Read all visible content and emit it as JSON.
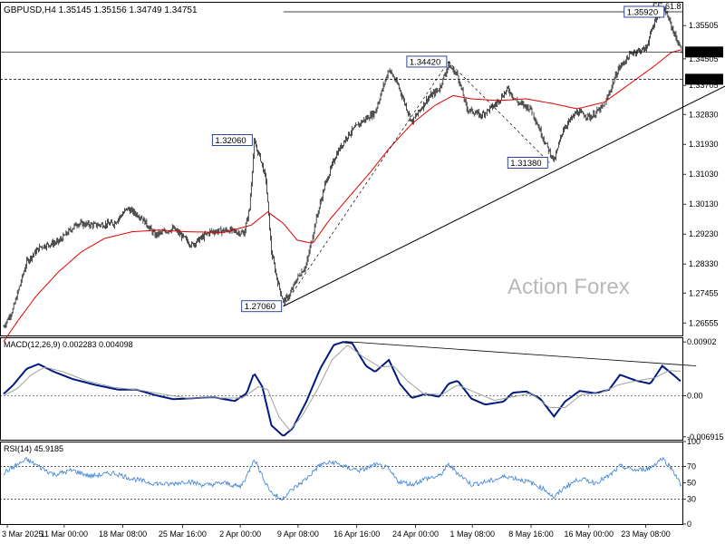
{
  "colors": {
    "background": "#ffffff",
    "bar": "#000000",
    "ema": "#e00000",
    "macd": "#001a80",
    "signal": "#a0a0a0",
    "rsi": "#3a7fd5",
    "grid": "#000000",
    "label_text": "#000000"
  },
  "header": {
    "symbol": "GBPUSD,H4",
    "ohlc": "1.35145 1.35156 1.34749 1.34751"
  },
  "watermark": "Action Forex",
  "chart_data": [
    {
      "type": "candlestick",
      "name": "price",
      "ylim": [
        1.2618,
        1.3622
      ],
      "y_ticks": [
        "1.35505",
        "1.34505",
        "1.33705",
        "1.32830",
        "1.31930",
        "1.31030",
        "1.30130",
        "1.29230",
        "1.28330",
        "1.27455",
        "1.26555"
      ],
      "y_tick_values": [
        1.35505,
        1.34505,
        1.33705,
        1.3283,
        1.3193,
        1.3103,
        1.3013,
        1.2923,
        1.2833,
        1.27455,
        1.26555
      ],
      "x_ticks": [
        "3 Mar 2025",
        "11 Mar 00:00",
        "18 Mar 08:00",
        "25 Mar 16:00",
        "2 Apr 00:00",
        "9 Apr 08:00",
        "16 Apr 16:00",
        "24 Apr 00:00",
        "1 May 08:00",
        "8 May 16:00",
        "16 May 00:00",
        "23 May 08:00"
      ],
      "x_tick_bar_index": [
        4,
        66,
        130,
        195,
        258,
        321,
        385,
        449,
        511,
        575,
        638,
        700
      ],
      "bar_count": 740,
      "price_path": [
        [
          0,
          1.2645
        ],
        [
          10,
          1.2695
        ],
        [
          25,
          1.284
        ],
        [
          40,
          1.2885
        ],
        [
          60,
          1.29
        ],
        [
          80,
          1.2955
        ],
        [
          100,
          1.295
        ],
        [
          120,
          1.2955
        ],
        [
          135,
          1.3
        ],
        [
          150,
          1.2975
        ],
        [
          165,
          1.292
        ],
        [
          185,
          1.294
        ],
        [
          205,
          1.289
        ],
        [
          225,
          1.293
        ],
        [
          245,
          1.2935
        ],
        [
          262,
          1.2925
        ],
        [
          268,
          1.3
        ],
        [
          273,
          1.3198
        ],
        [
          280,
          1.315
        ],
        [
          286,
          1.3085
        ],
        [
          292,
          1.287
        ],
        [
          298,
          1.279
        ],
        [
          305,
          1.272
        ],
        [
          312,
          1.274
        ],
        [
          320,
          1.279
        ],
        [
          330,
          1.283
        ],
        [
          340,
          1.296
        ],
        [
          350,
          1.307
        ],
        [
          362,
          1.316
        ],
        [
          375,
          1.322
        ],
        [
          390,
          1.326
        ],
        [
          405,
          1.329
        ],
        [
          420,
          1.342
        ],
        [
          430,
          1.337
        ],
        [
          445,
          1.326
        ],
        [
          462,
          1.333
        ],
        [
          475,
          1.336
        ],
        [
          485,
          1.3432
        ],
        [
          495,
          1.34
        ],
        [
          505,
          1.33
        ],
        [
          520,
          1.328
        ],
        [
          535,
          1.331
        ],
        [
          550,
          1.336
        ],
        [
          560,
          1.332
        ],
        [
          575,
          1.33
        ],
        [
          590,
          1.32
        ],
        [
          600,
          1.3143
        ],
        [
          610,
          1.324
        ],
        [
          625,
          1.329
        ],
        [
          640,
          1.3275
        ],
        [
          655,
          1.331
        ],
        [
          670,
          1.342
        ],
        [
          685,
          1.347
        ],
        [
          700,
          1.348
        ],
        [
          712,
          1.358
        ],
        [
          722,
          1.3592
        ],
        [
          732,
          1.352
        ],
        [
          739,
          1.3475
        ]
      ],
      "ema_path": [
        [
          0,
          1.26
        ],
        [
          15,
          1.266
        ],
        [
          35,
          1.2735
        ],
        [
          60,
          1.281
        ],
        [
          85,
          1.287
        ],
        [
          110,
          1.291
        ],
        [
          140,
          1.293
        ],
        [
          170,
          1.2935
        ],
        [
          200,
          1.293
        ],
        [
          240,
          1.2928
        ],
        [
          270,
          1.295
        ],
        [
          288,
          1.299
        ],
        [
          305,
          1.2955
        ],
        [
          320,
          1.2905
        ],
        [
          337,
          1.2895
        ],
        [
          355,
          1.2965
        ],
        [
          375,
          1.303
        ],
        [
          400,
          1.311
        ],
        [
          420,
          1.318
        ],
        [
          445,
          1.3255
        ],
        [
          470,
          1.331
        ],
        [
          490,
          1.334
        ],
        [
          510,
          1.333
        ],
        [
          540,
          1.3325
        ],
        [
          570,
          1.333
        ],
        [
          600,
          1.3315
        ],
        [
          625,
          1.33
        ],
        [
          655,
          1.332
        ],
        [
          685,
          1.338
        ],
        [
          710,
          1.343
        ],
        [
          728,
          1.347
        ],
        [
          739,
          1.3478
        ]
      ],
      "trendline": {
        "from": [
          305,
          1.2706
        ],
        "to": [
          795,
          1.338
        ]
      },
      "hline_solid": 1.3471,
      "hline_dashed": 1.3389,
      "fe_line": {
        "value": 1.3592,
        "label": "FE 61.8"
      },
      "dashed_swings": [
        [
          [
            305,
            1.2706
          ],
          [
            485,
            1.3442
          ]
        ],
        [
          [
            485,
            1.3442
          ],
          [
            595,
            1.3138
          ]
        ]
      ],
      "annotations": [
        {
          "text": "1.32060",
          "bar": 273,
          "price": 1.3206,
          "side": "left"
        },
        {
          "text": "1.27060",
          "bar": 305,
          "price": 1.2706,
          "side": "left"
        },
        {
          "text": "1.34420",
          "bar": 485,
          "price": 1.3442,
          "side": "left"
        },
        {
          "text": "1.31380",
          "bar": 595,
          "price": 1.3138,
          "side": "left"
        },
        {
          "text": "1.35920",
          "bar": 722,
          "price": 1.3592,
          "side": "left"
        }
      ],
      "price_label_current": "1.34751",
      "price_label_level": "1.33890"
    },
    {
      "type": "line",
      "name": "MACD",
      "title": "MACD(12,26,9) 0.002283 0.004098",
      "ylim": [
        -0.0074,
        0.0098
      ],
      "y_ticks": [
        "0.00902",
        "0.00",
        "-0.006915"
      ],
      "y_tick_values": [
        0.00902,
        0.0,
        -0.006915
      ],
      "series": [
        {
          "name": "MACD",
          "path": [
            [
              0,
              0.0003
            ],
            [
              10,
              0.0017
            ],
            [
              25,
              0.0045
            ],
            [
              38,
              0.0053
            ],
            [
              55,
              0.004
            ],
            [
              75,
              0.0028
            ],
            [
              100,
              0.0018
            ],
            [
              125,
              0.001
            ],
            [
              145,
              0.001
            ],
            [
              165,
              0.0001
            ],
            [
              185,
              -0.0006
            ],
            [
              210,
              -0.0004
            ],
            [
              230,
              -0.0003
            ],
            [
              252,
              -0.0009
            ],
            [
              265,
              0.0004
            ],
            [
              273,
              0.0038
            ],
            [
              282,
              0.0015
            ],
            [
              292,
              -0.005
            ],
            [
              305,
              -0.0068
            ],
            [
              315,
              -0.0055
            ],
            [
              330,
              -0.001
            ],
            [
              345,
              0.0045
            ],
            [
              360,
              0.0085
            ],
            [
              370,
              0.009
            ],
            [
              380,
              0.0088
            ],
            [
              395,
              0.005
            ],
            [
              405,
              0.004
            ],
            [
              420,
              0.006
            ],
            [
              432,
              0.002
            ],
            [
              445,
              -0.0004
            ],
            [
              460,
              0.0003
            ],
            [
              475,
              -0.0002
            ],
            [
              485,
              0.002
            ],
            [
              495,
              0.0025
            ],
            [
              510,
              -0.0005
            ],
            [
              525,
              -0.0015
            ],
            [
              545,
              -0.001
            ],
            [
              555,
              0.0005
            ],
            [
              570,
              0.0007
            ],
            [
              585,
              -0.0005
            ],
            [
              600,
              -0.0035
            ],
            [
              612,
              -0.001
            ],
            [
              628,
              0.0008
            ],
            [
              645,
              0.0004
            ],
            [
              660,
              0.001
            ],
            [
              672,
              0.0035
            ],
            [
              690,
              0.0025
            ],
            [
              705,
              0.002
            ],
            [
              718,
              0.005
            ],
            [
              730,
              0.0035
            ],
            [
              739,
              0.0023
            ]
          ]
        },
        {
          "name": "Signal",
          "path": [
            [
              0,
              0.0
            ],
            [
              15,
              0.0012
            ],
            [
              30,
              0.0035
            ],
            [
              45,
              0.0048
            ],
            [
              65,
              0.004
            ],
            [
              90,
              0.0025
            ],
            [
              120,
              0.0014
            ],
            [
              150,
              0.0009
            ],
            [
              175,
              0.0002
            ],
            [
              200,
              -0.0004
            ],
            [
              230,
              -0.0004
            ],
            [
              260,
              -0.0004
            ],
            [
              278,
              0.0015
            ],
            [
              288,
              0.001
            ],
            [
              300,
              -0.0035
            ],
            [
              312,
              -0.0058
            ],
            [
              325,
              -0.0035
            ],
            [
              342,
              0.001
            ],
            [
              358,
              0.006
            ],
            [
              375,
              0.0085
            ],
            [
              392,
              0.0065
            ],
            [
              410,
              0.0048
            ],
            [
              425,
              0.005
            ],
            [
              440,
              0.0025
            ],
            [
              458,
              0.0003
            ],
            [
              478,
              0.0002
            ],
            [
              495,
              0.0018
            ],
            [
              515,
              0.0005
            ],
            [
              535,
              -0.0008
            ],
            [
              555,
              -0.0002
            ],
            [
              575,
              0.0004
            ],
            [
              595,
              -0.002
            ],
            [
              612,
              -0.002
            ],
            [
              630,
              0.0002
            ],
            [
              650,
              0.0004
            ],
            [
              670,
              0.0018
            ],
            [
              690,
              0.0025
            ],
            [
              710,
              0.003
            ],
            [
              725,
              0.0042
            ],
            [
              739,
              0.0041
            ]
          ]
        }
      ],
      "trendline": {
        "from": [
          372,
          0.0091
        ],
        "to": [
          755,
          0.005
        ]
      }
    },
    {
      "type": "line",
      "name": "RSI",
      "title": "RSI(14) 45.9185",
      "ylim": [
        0,
        100
      ],
      "y_ticks": [
        "100",
        "70",
        "50",
        "30",
        "0"
      ],
      "y_tick_values": [
        100,
        70,
        50,
        30,
        0
      ],
      "guide_levels": [
        70,
        30
      ],
      "series": [
        {
          "name": "RSI(14)",
          "path": [
            [
              0,
              62
            ],
            [
              12,
              70
            ],
            [
              25,
              78
            ],
            [
              38,
              70
            ],
            [
              55,
              60
            ],
            [
              75,
              65
            ],
            [
              95,
              58
            ],
            [
              120,
              62
            ],
            [
              140,
              55
            ],
            [
              160,
              50
            ],
            [
              180,
              48
            ],
            [
              200,
              52
            ],
            [
              220,
              47
            ],
            [
              240,
              50
            ],
            [
              258,
              45
            ],
            [
              266,
              60
            ],
            [
              273,
              80
            ],
            [
              282,
              58
            ],
            [
              292,
              38
            ],
            [
              302,
              30
            ],
            [
              315,
              42
            ],
            [
              330,
              55
            ],
            [
              345,
              72
            ],
            [
              360,
              75
            ],
            [
              375,
              68
            ],
            [
              390,
              65
            ],
            [
              405,
              72
            ],
            [
              418,
              68
            ],
            [
              430,
              52
            ],
            [
              445,
              48
            ],
            [
              460,
              55
            ],
            [
              475,
              58
            ],
            [
              485,
              72
            ],
            [
              495,
              62
            ],
            [
              510,
              48
            ],
            [
              530,
              52
            ],
            [
              548,
              58
            ],
            [
              560,
              55
            ],
            [
              575,
              50
            ],
            [
              590,
              42
            ],
            [
              600,
              32
            ],
            [
              612,
              45
            ],
            [
              628,
              55
            ],
            [
              645,
              50
            ],
            [
              660,
              58
            ],
            [
              672,
              70
            ],
            [
              690,
              65
            ],
            [
              705,
              68
            ],
            [
              718,
              80
            ],
            [
              730,
              65
            ],
            [
              739,
              46
            ]
          ]
        }
      ]
    }
  ]
}
